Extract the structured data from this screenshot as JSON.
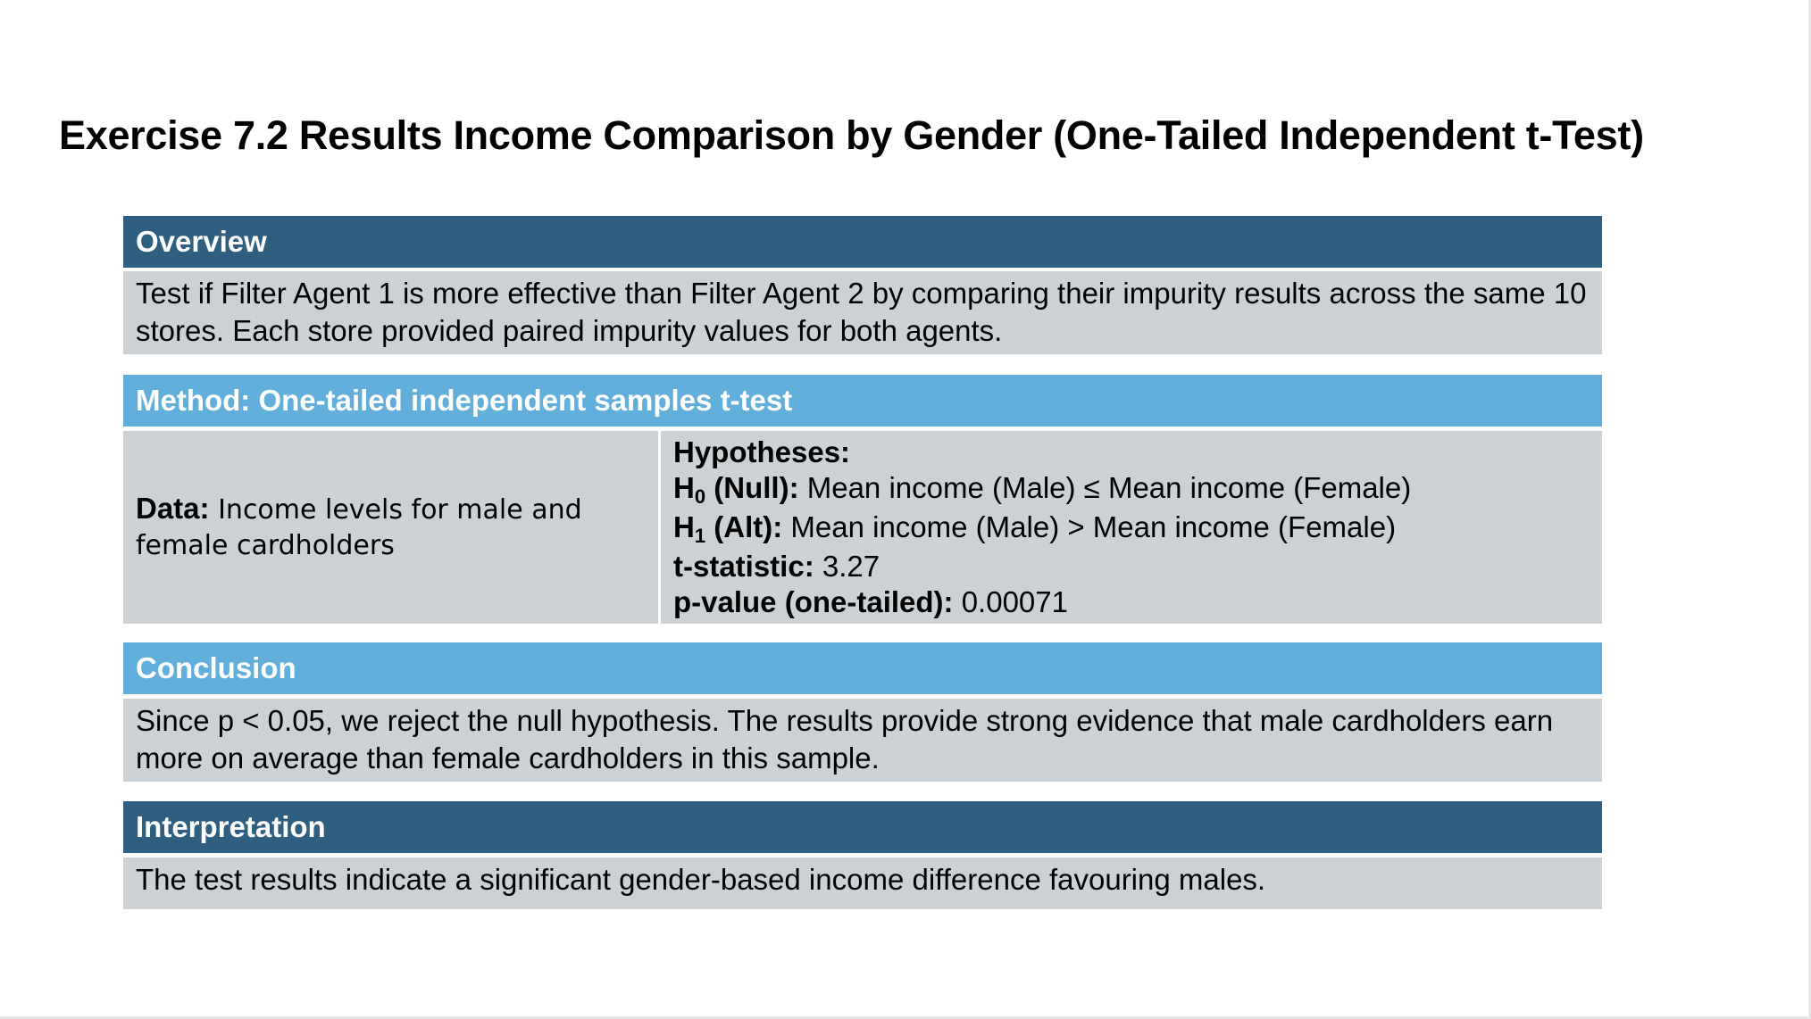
{
  "title": "Exercise 7.2 Results Income Comparison by Gender (One-Tailed Independent t-Test)",
  "overview": {
    "header": "Overview",
    "text": "Test if Filter Agent 1 is more effective than Filter Agent 2 by comparing their impurity results across the same 10 stores. Each store provided paired impurity values for both agents."
  },
  "method": {
    "header": "Method: One-tailed independent samples t-test",
    "data_label": "Data:",
    "data_text": "Income levels for male and female cardholders",
    "hypotheses_label": "Hypotheses:",
    "h0_symbol": "H",
    "h0_sub": "0",
    "h0_label": "(Null):",
    "h0_text": "Mean income (Male) ≤ Mean income (Female)",
    "h1_symbol": "H",
    "h1_sub": "1",
    "h1_label": "(Alt):",
    "h1_text": "Mean income (Male) > Mean income (Female)",
    "tstat_label": "t-statistic:",
    "tstat_value": "3.27",
    "pvalue_label": "p-value (one-tailed):",
    "pvalue_value": "0.00071"
  },
  "conclusion": {
    "header": "Conclusion",
    "text": "Since p < 0.05, we reject the null hypothesis. The results provide strong evidence that male cardholders earn more on average than female cardholders in this sample."
  },
  "interpretation": {
    "header": "Interpretation",
    "text": "The test results indicate a significant gender-based income difference favouring males."
  },
  "colors": {
    "header_dark": "#2e5f80",
    "header_light": "#62aedb",
    "cell_gray": "#ccd1d5"
  }
}
